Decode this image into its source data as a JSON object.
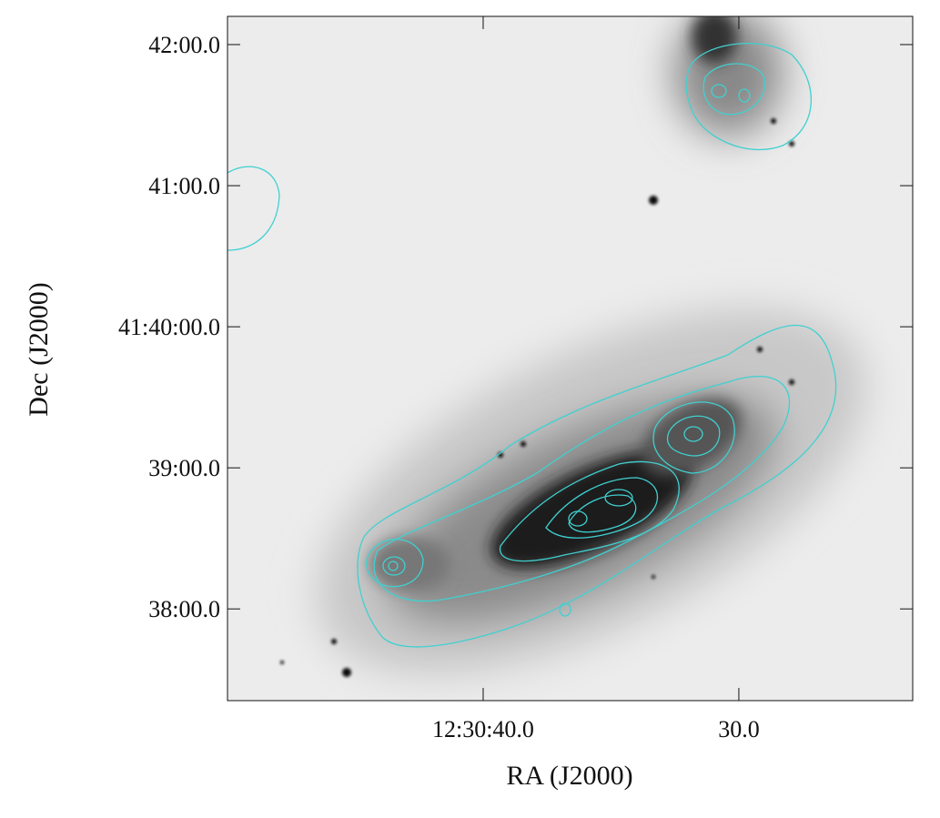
{
  "chart_data": {
    "type": "image",
    "xlabel": "RA (J2000)",
    "ylabel": "Dec (J2000)",
    "xlim": [
      50.0,
      23.2
    ],
    "ylim": [
      37.35,
      42.2
    ],
    "xticks": [
      {
        "value": 40,
        "label": "12:30:40.0"
      },
      {
        "value": 30,
        "label": "30.0"
      }
    ],
    "yticks": [
      {
        "value": 38,
        "label": "38:00.0"
      },
      {
        "value": 39,
        "label": "39:00.0"
      },
      {
        "value": 40,
        "label": "41:40:00.0"
      },
      {
        "value": 41,
        "label": "41:00.0"
      },
      {
        "value": 42,
        "label": "42:00.0"
      }
    ],
    "contour_color": "#40d0d0"
  }
}
